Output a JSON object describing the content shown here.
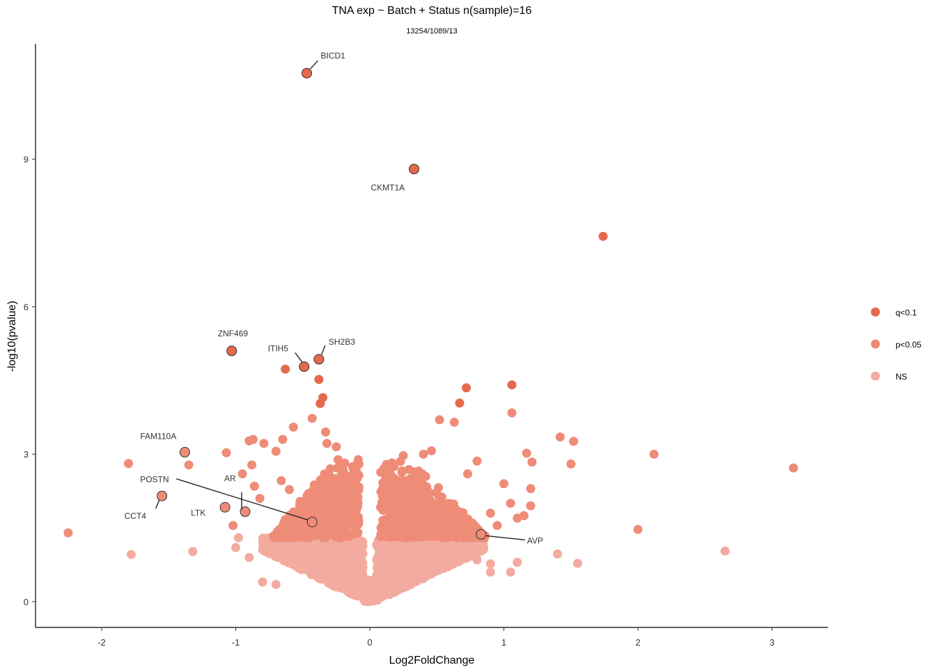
{
  "chart_data": {
    "type": "scatter",
    "title": "TNA exp ~ Batch + Status n(sample)=16",
    "subtitle": "13254/1089/13",
    "xlabel": "Log2FoldChange",
    "ylabel": "-log10(pvalue)",
    "xlim": [
      -2.5,
      3.4
    ],
    "ylim": [
      -0.55,
      11.3
    ],
    "xticks": [
      -2,
      -1,
      0,
      1,
      2,
      3
    ],
    "xtick_labels": [
      "-2",
      "-1",
      "0",
      "1",
      "2",
      "3"
    ],
    "yticks": [
      0,
      3,
      6,
      9
    ],
    "ytick_labels": [
      "0",
      "3",
      "6",
      "9"
    ],
    "grid": false,
    "legend_position": "right",
    "legend": [
      {
        "name": "q<0.1",
        "color": "#e5694d"
      },
      {
        "name": "p<0.05",
        "color": "#ee8c78"
      },
      {
        "name": "NS",
        "color": "#f3aba0"
      }
    ],
    "series": [
      {
        "name": "q<0.1",
        "color": "#e5694d",
        "points": [
          [
            -0.47,
            10.75
          ],
          [
            0.33,
            8.8
          ],
          [
            1.74,
            7.43
          ],
          [
            -1.03,
            5.1
          ],
          [
            -0.49,
            4.78
          ],
          [
            -0.38,
            4.93
          ],
          [
            -0.63,
            4.73
          ],
          [
            -0.38,
            4.52
          ],
          [
            -0.35,
            4.15
          ],
          [
            -0.37,
            4.03
          ],
          [
            0.72,
            4.35
          ],
          [
            1.06,
            4.41
          ],
          [
            0.67,
            4.04
          ]
        ]
      },
      {
        "name": "p<0.05",
        "color": "#ee8c78",
        "points": [
          [
            -2.25,
            1.4
          ],
          [
            -1.8,
            2.81
          ],
          [
            -1.55,
            2.15
          ],
          [
            -1.38,
            3.04
          ],
          [
            -1.35,
            2.78
          ],
          [
            -1.07,
            3.03
          ],
          [
            -1.08,
            1.92
          ],
          [
            -1.02,
            1.55
          ],
          [
            -0.93,
            1.83
          ],
          [
            -0.95,
            2.6
          ],
          [
            -0.9,
            3.27
          ],
          [
            -0.87,
            3.3
          ],
          [
            -0.79,
            3.22
          ],
          [
            -0.7,
            3.06
          ],
          [
            -0.65,
            3.3
          ],
          [
            -0.57,
            3.55
          ],
          [
            -0.43,
            3.73
          ],
          [
            -0.33,
            3.45
          ],
          [
            -0.32,
            3.22
          ],
          [
            -0.25,
            3.15
          ],
          [
            -0.86,
            2.35
          ],
          [
            -0.88,
            2.78
          ],
          [
            -0.82,
            2.1
          ],
          [
            -0.66,
            2.46
          ],
          [
            -0.6,
            2.28
          ],
          [
            1.42,
            3.35
          ],
          [
            1.52,
            3.26
          ],
          [
            1.5,
            2.8
          ],
          [
            2.12,
            3.0
          ],
          [
            3.16,
            2.72
          ],
          [
            2.0,
            1.47
          ],
          [
            1.17,
            3.02
          ],
          [
            1.21,
            2.84
          ],
          [
            1.2,
            2.3
          ],
          [
            1.2,
            1.95
          ],
          [
            1.15,
            1.75
          ],
          [
            1.1,
            1.7
          ],
          [
            1.05,
            2.0
          ],
          [
            1.0,
            2.4
          ],
          [
            0.95,
            1.55
          ],
          [
            0.9,
            1.8
          ],
          [
            0.8,
            2.86
          ],
          [
            0.73,
            2.6
          ],
          [
            0.63,
            3.65
          ],
          [
            0.52,
            3.7
          ],
          [
            0.46,
            3.07
          ],
          [
            0.4,
            3.0
          ],
          [
            0.25,
            2.97
          ],
          [
            0.18,
            2.75
          ],
          [
            0.12,
            2.4
          ],
          [
            1.06,
            3.84
          ],
          [
            0.83,
            1.37
          ],
          [
            -0.43,
            1.62
          ]
        ],
        "cloud": {
          "x_range": [
            -0.72,
            0.86
          ],
          "y_range": [
            1.3,
            3.25
          ],
          "count": 1500
        }
      },
      {
        "name": "NS",
        "color": "#f3aba0",
        "points": [
          [
            -1.78,
            0.96
          ],
          [
            -1.32,
            1.02
          ],
          [
            1.4,
            0.97
          ],
          [
            1.55,
            0.78
          ],
          [
            2.65,
            1.03
          ],
          [
            1.1,
            0.8
          ],
          [
            1.05,
            0.6
          ],
          [
            0.9,
            0.6
          ],
          [
            0.9,
            0.77
          ],
          [
            0.8,
            0.85
          ],
          [
            -0.8,
            0.4
          ],
          [
            -0.7,
            0.35
          ],
          [
            -0.9,
            0.9
          ],
          [
            -0.98,
            1.3
          ],
          [
            -1.0,
            1.1
          ]
        ],
        "cloud": {
          "x_range": [
            -0.8,
            0.85
          ],
          "y_range": [
            0.0,
            1.3
          ],
          "count": 2600
        }
      }
    ],
    "labels": [
      {
        "text": "BICD1",
        "x": -0.47,
        "y": 10.75
      },
      {
        "text": "CKMT1A",
        "x": 0.33,
        "y": 8.8
      },
      {
        "text": "ZNF469",
        "x": -1.03,
        "y": 5.1
      },
      {
        "text": "ITIH5",
        "x": -0.49,
        "y": 4.78
      },
      {
        "text": "SH2B3",
        "x": -0.38,
        "y": 4.93
      },
      {
        "text": "FAM110A",
        "x": -1.38,
        "y": 3.04
      },
      {
        "text": "POSTN",
        "x": -0.43,
        "y": 1.62
      },
      {
        "text": "AR",
        "x": -0.93,
        "y": 1.83
      },
      {
        "text": "CCT4",
        "x": -1.55,
        "y": 2.15
      },
      {
        "text": "LTK",
        "x": -1.08,
        "y": 1.92
      },
      {
        "text": "AVP",
        "x": 0.83,
        "y": 1.37
      }
    ]
  }
}
